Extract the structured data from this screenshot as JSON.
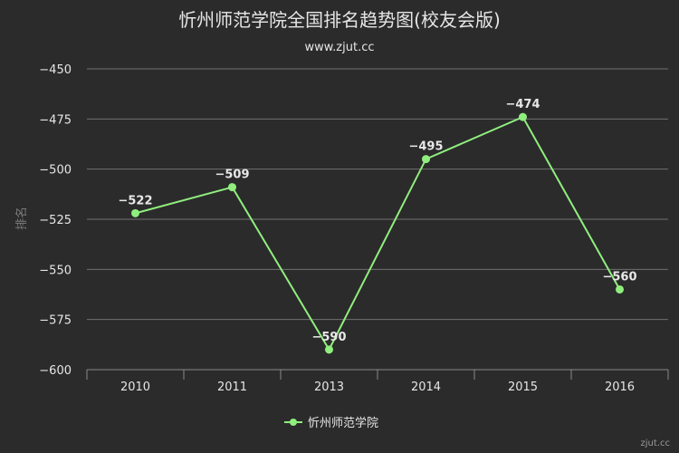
{
  "chart_data": {
    "type": "line",
    "title": "忻州师范学院全国排名趋势图(校友会版)",
    "subtitle": "www.zjut.cc",
    "xlabel": "",
    "ylabel": "排名",
    "categories": [
      "2010",
      "2011",
      "2013",
      "2014",
      "2015",
      "2016"
    ],
    "series": [
      {
        "name": "忻州师范学院",
        "values": [
          -522,
          -509,
          -590,
          -495,
          -474,
          -560
        ]
      }
    ],
    "ylim": [
      -600,
      -450
    ],
    "yticks": [
      -450,
      -475,
      -500,
      -525,
      -550,
      -575,
      -600
    ],
    "ytick_labels": [
      "−450",
      "−475",
      "−500",
      "−525",
      "−550",
      "−575",
      "−600"
    ],
    "data_labels": [
      "−522",
      "−509",
      "−590",
      "−495",
      "−474",
      "−560"
    ],
    "grid": true,
    "legend": "bottom-center",
    "colors": {
      "background": "#2b2b2b",
      "series": "#90ee7e",
      "grid": "#707070"
    }
  },
  "credit": "zjut.cc"
}
